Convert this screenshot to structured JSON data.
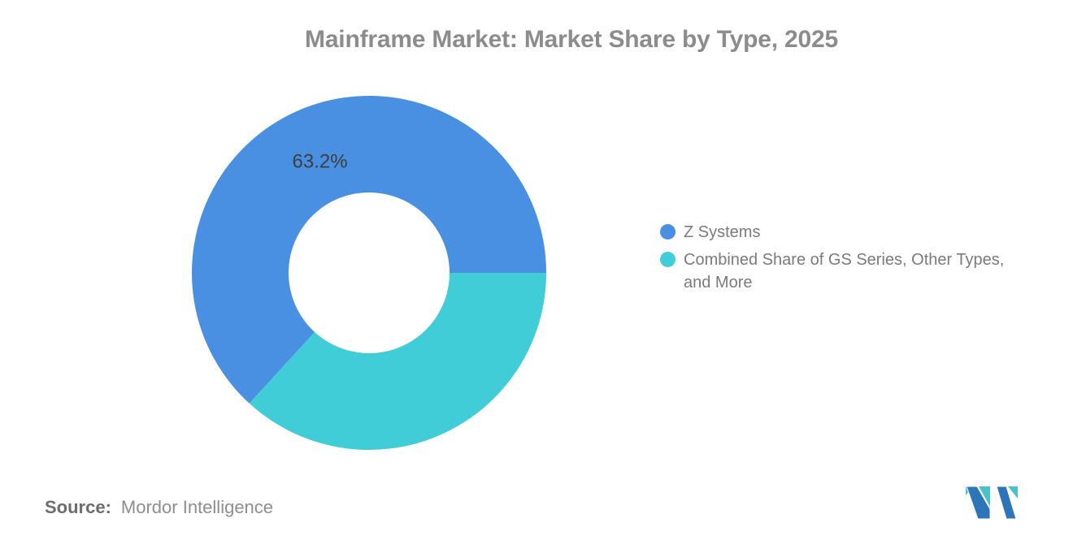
{
  "title": "Mainframe Market: Market Share by Type, 2025",
  "chart_data": {
    "type": "pie",
    "subtype": "donut",
    "title": "Mainframe Market: Market Share by Type, 2025",
    "series": [
      {
        "name": "Z Systems",
        "value": 63.2,
        "color": "#4A90E2",
        "data_label": "63.2%"
      },
      {
        "name": "Combined Share of GS Series, Other Types, and More",
        "value": 36.8,
        "color": "#41CDD8",
        "data_label": ""
      }
    ],
    "start_angle_deg": 0,
    "direction": "ccw",
    "outer_radius": 218,
    "inner_radius": 99,
    "label_radius": 150,
    "label_color": "#3d3d3d",
    "legend_position": "right",
    "background": "#ffffff"
  },
  "legend": {
    "items": [
      {
        "label": "Z Systems"
      },
      {
        "label": "Combined Share of GS Series, Other Types, and More"
      }
    ]
  },
  "footer": {
    "source_label": "Source:",
    "source_value": "Mordor Intelligence"
  },
  "logo": {
    "name": "mordor-intelligence-logo",
    "teal": "#4BC2CB",
    "blue": "#2E74B8"
  }
}
